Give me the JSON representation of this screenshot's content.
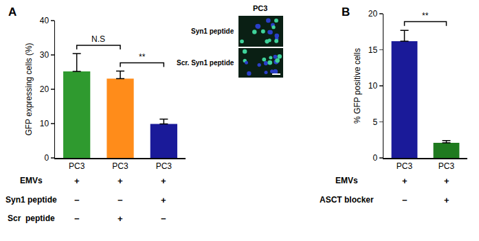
{
  "chart_data": [
    {
      "type": "bar",
      "panel": "A",
      "categories": [
        "PC3",
        "PC3",
        "PC3"
      ],
      "values": [
        25.2,
        23.1,
        9.9
      ],
      "errors": [
        5.2,
        2.2,
        1.4
      ],
      "colors": [
        "#2f9a2f",
        "#ff8c1a",
        "#1a1a99"
      ],
      "y_label": "GFP expressing cells (%)",
      "ylim": [
        0,
        40
      ],
      "yticks": [
        0,
        10,
        20,
        30,
        40
      ],
      "grid": false,
      "significance": [
        {
          "from": 0,
          "to": 1,
          "label": "N.S"
        },
        {
          "from": 1,
          "to": 2,
          "label": "**"
        }
      ],
      "treatments": [
        {
          "label": "EMVs",
          "signs": [
            "+",
            "+",
            "+"
          ]
        },
        {
          "label": "Syn1 peptide",
          "signs": [
            "−",
            "−",
            "+"
          ]
        },
        {
          "label": "Scr  peptide",
          "signs": [
            "−",
            "+",
            "−"
          ]
        }
      ]
    },
    {
      "type": "bar",
      "panel": "B",
      "categories": [
        "PC3",
        "PC3"
      ],
      "values": [
        16.2,
        2.1
      ],
      "errors": [
        1.5,
        0.3
      ],
      "colors": [
        "#1a1a99",
        "#1f7a1f"
      ],
      "y_label": "% GFP positive cells",
      "ylim": [
        0,
        20
      ],
      "yticks": [
        0,
        5,
        10,
        15,
        20
      ],
      "grid": false,
      "significance": [
        {
          "from": 0,
          "to": 1,
          "label": "**"
        }
      ],
      "treatments": [
        {
          "label": "EMVs",
          "signs": [
            "+",
            "+"
          ]
        },
        {
          "label": "ASCT blocker",
          "signs": [
            "−",
            "+"
          ]
        }
      ]
    }
  ],
  "micrograph": {
    "title": "PC3",
    "rows": [
      "Syn1 peptide",
      "Scr. Syn1 peptide"
    ]
  }
}
